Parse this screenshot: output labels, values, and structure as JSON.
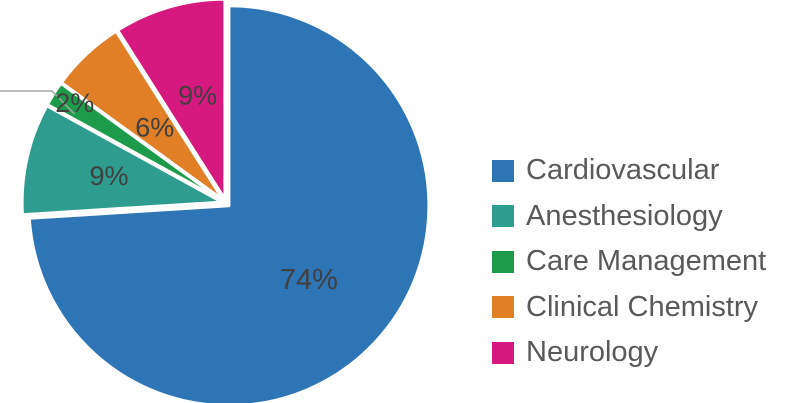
{
  "chart_data": {
    "type": "pie",
    "title": "",
    "start_angle_deg": 0,
    "direction": "clockwise",
    "legend_position": "right",
    "series": [
      {
        "name": "Cardiovascular",
        "value": 74,
        "label": "74%",
        "color": "#2E75B6"
      },
      {
        "name": "Anesthesiology",
        "value": 9,
        "label": "9%",
        "color": "#2E9C8F"
      },
      {
        "name": "Care Management",
        "value": 2,
        "label": "2%",
        "color": "#1E9B4A"
      },
      {
        "name": "Clinical Chemistry",
        "value": 6,
        "label": "6%",
        "color": "#E07F26"
      },
      {
        "name": "Neurology",
        "value": 9,
        "label": "9%",
        "color": "#D6197E"
      }
    ]
  }
}
